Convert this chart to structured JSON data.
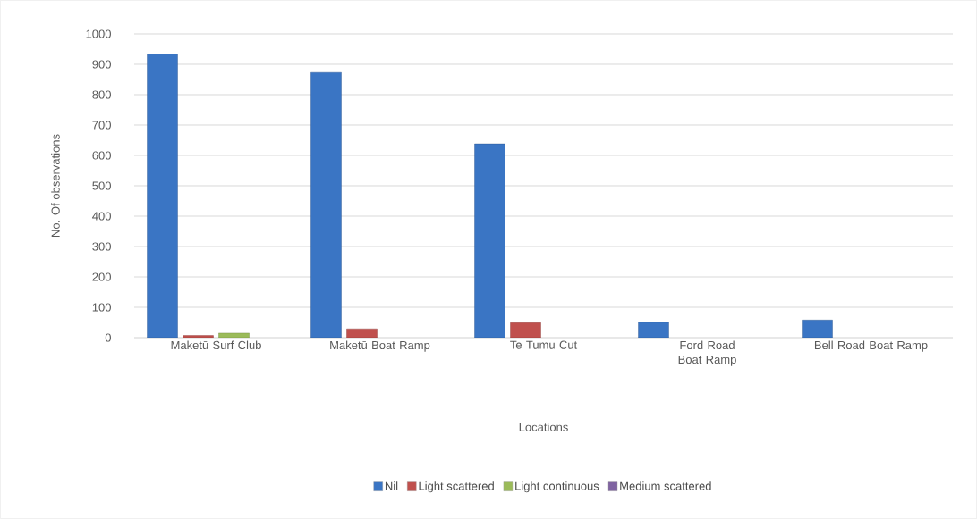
{
  "chart_data": {
    "type": "bar",
    "xlabel": "Locations",
    "ylabel": "No. Of observations",
    "categories": [
      "Maketū Surf Club",
      "Maketū Boat Ramp",
      "Te Tumu Cut",
      "Ford Road Boat Ramp",
      "Bell Road Boat Ramp"
    ],
    "series": [
      {
        "name": "Nil",
        "color": "#3a75c4",
        "values": [
          934,
          873,
          638,
          51,
          58
        ]
      },
      {
        "name": "Light scattered",
        "color": "#c0504d",
        "values": [
          7,
          29,
          49,
          null,
          null
        ]
      },
      {
        "name": "Light continuous",
        "color": "#9bbb59",
        "values": [
          15,
          null,
          null,
          null,
          null
        ]
      },
      {
        "name": "Medium scattered",
        "color": "#8064a2",
        "values": [
          null,
          null,
          null,
          null,
          null
        ]
      }
    ],
    "ylim": [
      0,
      1000
    ],
    "yticks": [
      0,
      100,
      200,
      300,
      400,
      500,
      600,
      700,
      800,
      900,
      1000
    ],
    "grid": "y",
    "legend": "bottom"
  }
}
